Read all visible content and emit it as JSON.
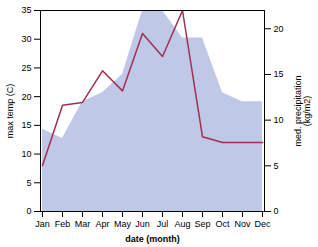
{
  "chart_data": {
    "type": "line",
    "xlabel": "date (month)",
    "ylabel": "max temp (C)",
    "y2label": "med. precipitation\n(kg/m2)",
    "categories": [
      "Jan",
      "Feb",
      "Mar",
      "Apr",
      "May",
      "Jun",
      "Jul",
      "Aug",
      "Sep",
      "Oct",
      "Nov",
      "Dec"
    ],
    "series": [
      {
        "type": "area",
        "axis": "y2",
        "color": "#c0c8e8",
        "values": [
          9,
          8,
          12,
          13,
          15,
          22,
          22,
          19,
          19,
          13,
          12,
          12
        ]
      },
      {
        "type": "line",
        "color": "#a03050",
        "values": [
          8,
          18.5,
          19,
          24.5,
          21,
          31,
          27,
          35,
          13,
          12,
          12,
          12
        ]
      }
    ],
    "ylim": [
      0,
      35
    ],
    "yticks": [
      0,
      5,
      10,
      15,
      20,
      25,
      30,
      35
    ],
    "y2lim": [
      0,
      22
    ],
    "y2ticks": [
      0,
      5,
      10,
      15,
      20
    ],
    "grid": false
  }
}
